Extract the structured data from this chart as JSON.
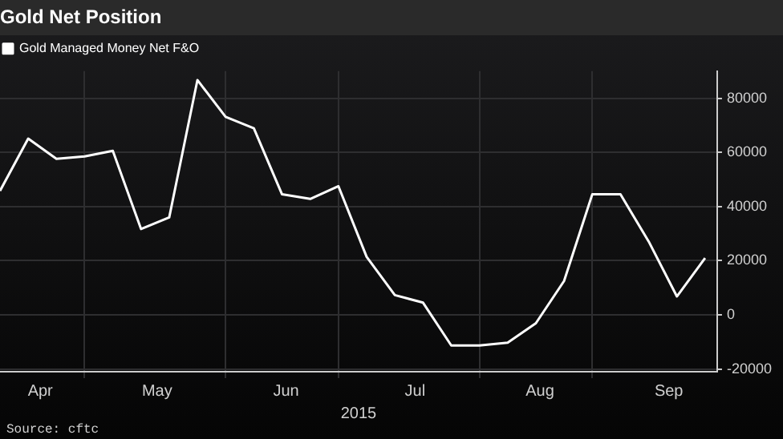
{
  "chart_data": {
    "type": "line",
    "title": "Gold Net Position",
    "xlabel": "2015",
    "x": [
      "2015-03-31",
      "2015-04-07",
      "2015-04-14",
      "2015-04-21",
      "2015-04-28",
      "2015-05-05",
      "2015-05-12",
      "2015-05-19",
      "2015-05-26",
      "2015-06-02",
      "2015-06-09",
      "2015-06-16",
      "2015-06-23",
      "2015-06-30",
      "2015-07-07",
      "2015-07-14",
      "2015-07-21",
      "2015-07-28",
      "2015-08-04",
      "2015-08-11",
      "2015-08-18",
      "2015-08-25",
      "2015-09-01",
      "2015-09-08",
      "2015-09-15",
      "2015-09-22"
    ],
    "series": [
      {
        "name": "Gold Managed Money Net F&O",
        "color": "#ffffff",
        "values": [
          45800,
          65100,
          57600,
          58500,
          60600,
          31700,
          36000,
          86700,
          73100,
          68900,
          44500,
          42800,
          47500,
          21400,
          7300,
          4500,
          -11300,
          -11300,
          -10300,
          -3100,
          12500,
          44500,
          44500,
          27100,
          6800,
          21000
        ]
      }
    ],
    "xlim": [
      "2015-03-31",
      "2015-09-25"
    ],
    "xticks": [
      {
        "value": "2015-04-10",
        "label": "Apr"
      },
      {
        "value": "2015-04-21",
        "label": null
      },
      {
        "value": "2015-05-09",
        "label": "May"
      },
      {
        "value": "2015-05-26",
        "label": null
      },
      {
        "value": "2015-06-10",
        "label": "Jun"
      },
      {
        "value": "2015-06-23",
        "label": null
      },
      {
        "value": "2015-07-12",
        "label": "Jul"
      },
      {
        "value": "2015-07-28",
        "label": null
      },
      {
        "value": "2015-08-12",
        "label": "Aug"
      },
      {
        "value": "2015-08-25",
        "label": null
      },
      {
        "value": "2015-09-13",
        "label": "Sep"
      }
    ],
    "ylim": [
      -21000,
      90000
    ],
    "yticks": [
      -20000,
      0,
      20000,
      40000,
      60000,
      80000
    ],
    "grid": true,
    "legend": "top left",
    "marker": "none",
    "line_style": "solid",
    "annotations": [
      "Source: cftc"
    ]
  }
}
